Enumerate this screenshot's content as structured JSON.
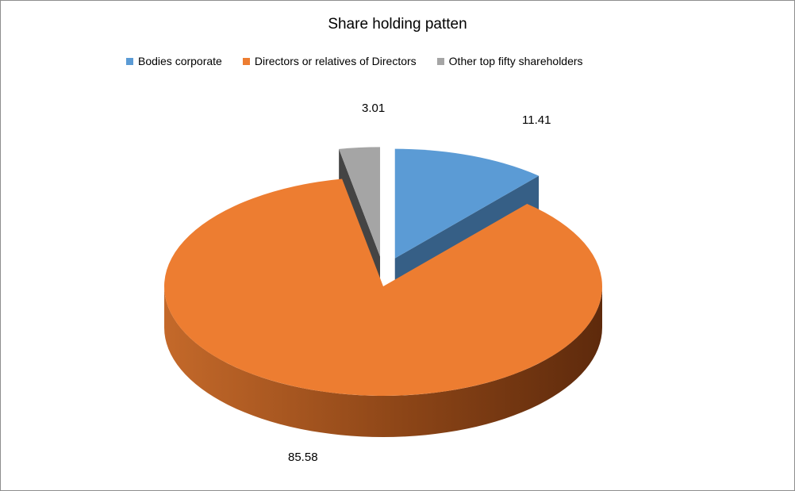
{
  "chart_data": {
    "type": "pie",
    "style": "3d-exploded",
    "title": "Share holding patten",
    "legend_position": "top",
    "categories": [
      "Bodies corporate",
      "Directors or relatives of Directors",
      "Other top fifty shareholders"
    ],
    "values": [
      11.41,
      85.58,
      3.01
    ],
    "data_labels": [
      "11.41",
      "85.58",
      "3.01"
    ],
    "colors": [
      "#5B9BD5",
      "#ED7D31",
      "#A5A5A5"
    ],
    "side_colors": [
      "#365F86",
      "#7A3A12",
      "#444444"
    ]
  }
}
